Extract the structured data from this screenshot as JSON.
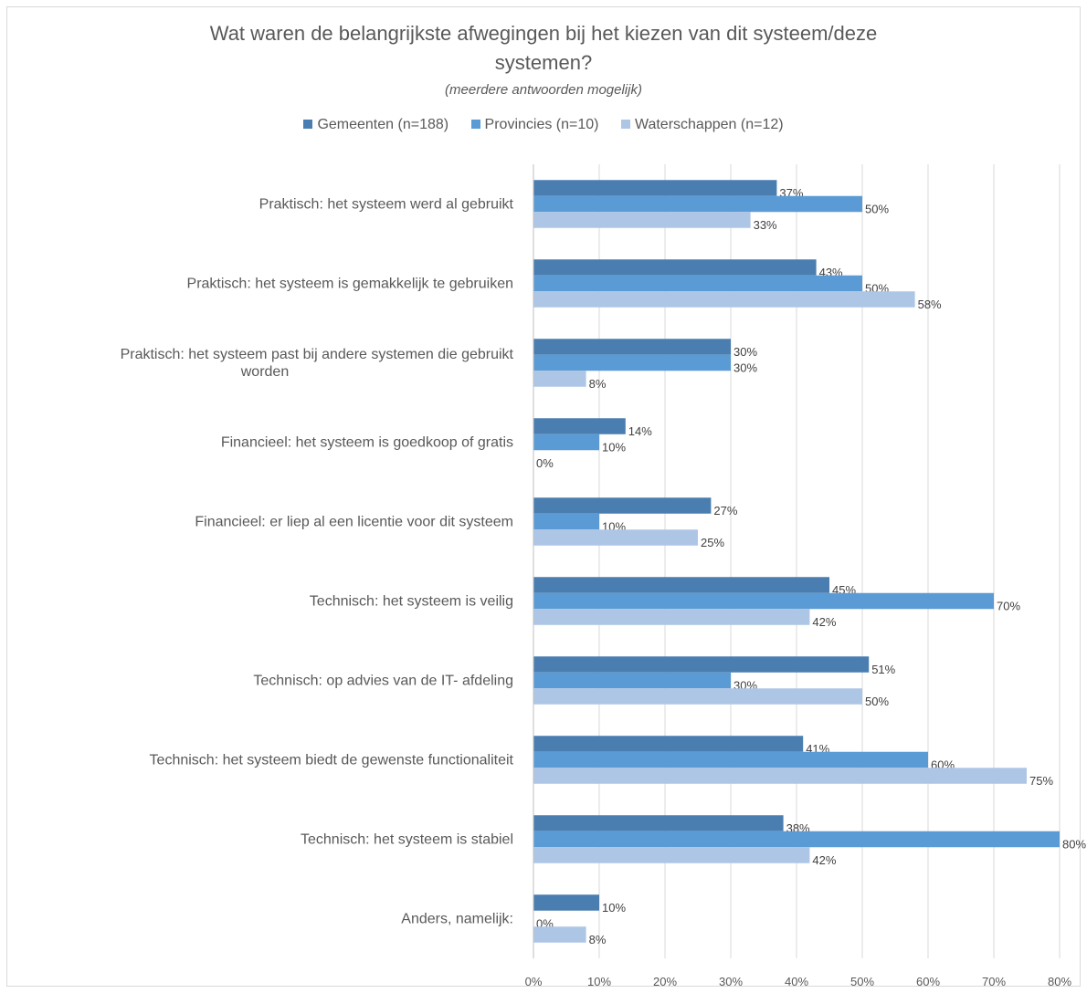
{
  "chart_data": {
    "type": "bar",
    "orientation": "horizontal",
    "title_line1": "Wat waren de belangrijkste afwegingen bij het kiezen van dit systeem/deze",
    "title_line2": "systemen?",
    "subtitle": "(meerdere antwoorden mogelijk)",
    "legend_position": "top",
    "grid": true,
    "xlim": [
      0,
      80
    ],
    "x_ticks": [
      0,
      10,
      20,
      30,
      40,
      50,
      60,
      70,
      80
    ],
    "x_tick_labels": [
      "0%",
      "10%",
      "20%",
      "30%",
      "40%",
      "50%",
      "60%",
      "70%",
      "80%"
    ],
    "categories": [
      [
        "Praktisch: het systeem werd al gebruikt"
      ],
      [
        "Praktisch: het systeem is gemakkelijk te gebruiken"
      ],
      [
        "Praktisch: het systeem past bij andere systemen die gebruikt",
        "worden"
      ],
      [
        "Financieel: het systeem is goedkoop of gratis"
      ],
      [
        "Financieel: er liep al een licentie voor dit systeem"
      ],
      [
        "Technisch: het systeem is veilig"
      ],
      [
        "Technisch: op advies van de IT- afdeling"
      ],
      [
        "Technisch: het systeem biedt de gewenste functionaliteit"
      ],
      [
        "Technisch: het systeem is stabiel"
      ],
      [
        "Anders, namelijk:"
      ]
    ],
    "series": [
      {
        "name": "Gemeenten (n=188)",
        "color": "#4a7eb0",
        "values": [
          37,
          43,
          30,
          14,
          27,
          45,
          51,
          41,
          38,
          10
        ]
      },
      {
        "name": "Provincies (n=10)",
        "color": "#5b9bd5",
        "values": [
          50,
          50,
          30,
          10,
          10,
          70,
          30,
          60,
          80,
          0
        ]
      },
      {
        "name": "Waterschappen (n=12)",
        "color": "#aec6e6",
        "values": [
          33,
          58,
          8,
          0,
          25,
          42,
          50,
          75,
          42,
          8
        ]
      }
    ],
    "value_suffix": "%"
  }
}
